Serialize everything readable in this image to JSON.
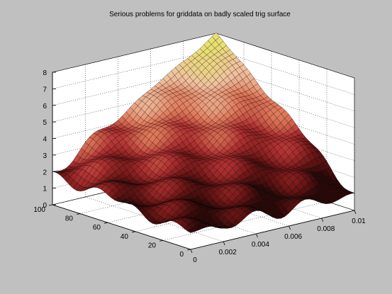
{
  "chart_data": {
    "type": "surface",
    "title": "Serious problems for griddata on badly scaled trig surface",
    "xlabel": "",
    "ylabel": "",
    "zlabel": "",
    "x_ticks": [
      "0",
      "0.002",
      "0.004",
      "0.006",
      "0.008",
      "0.01"
    ],
    "y_ticks": [
      "0",
      "20",
      "40",
      "60",
      "80",
      "100"
    ],
    "z_ticks": [
      "0",
      "1",
      "2",
      "3",
      "4",
      "5",
      "6",
      "7",
      "8"
    ],
    "xlim": [
      0,
      0.01
    ],
    "ylim": [
      0,
      100
    ],
    "zlim": [
      0,
      8
    ],
    "grid": true,
    "corner_values": [
      {
        "x": 0,
        "y": 0,
        "z": 1.0
      },
      {
        "x": 0.01,
        "y": 0,
        "z": 1.0
      },
      {
        "x": 0,
        "y": 100,
        "z": 1.9
      },
      {
        "x": 0.01,
        "y": 100,
        "z": 8.0
      }
    ],
    "colormap": [
      "#2a0808",
      "#6e1515",
      "#b03030",
      "#e07a5a",
      "#f0c0a0",
      "#e8e070"
    ]
  }
}
